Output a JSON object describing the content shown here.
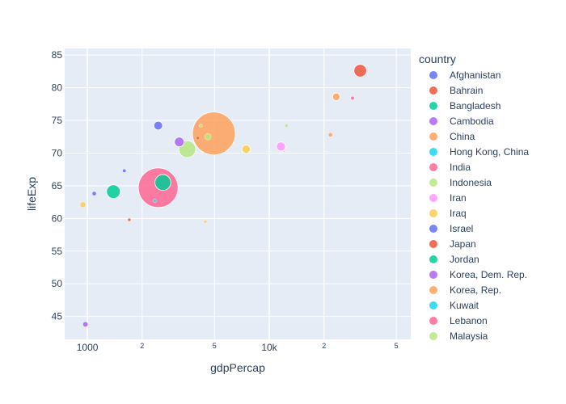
{
  "chart_data": {
    "type": "scatter",
    "xlabel": "gdpPercap",
    "ylabel": "lifeExp",
    "x_scale": "log",
    "xlim": [
      750,
      60000
    ],
    "ylim": [
      41.5,
      86
    ],
    "x_ticks": [
      {
        "value": 1000,
        "label": "1000",
        "minor": false
      },
      {
        "value": 2000,
        "label": "2",
        "minor": true
      },
      {
        "value": 5000,
        "label": "5",
        "minor": true
      },
      {
        "value": 10000,
        "label": "10k",
        "minor": false
      },
      {
        "value": 20000,
        "label": "2",
        "minor": true
      },
      {
        "value": 50000,
        "label": "5",
        "minor": true
      }
    ],
    "y_ticks": [
      45,
      50,
      55,
      60,
      65,
      70,
      75,
      80,
      85
    ],
    "grid": true,
    "legend": {
      "title": "country",
      "placement": "right",
      "entries": [
        {
          "name": "Afghanistan",
          "color": "#636efa"
        },
        {
          "name": "Bahrain",
          "color": "#EF553B"
        },
        {
          "name": "Bangladesh",
          "color": "#00cc96"
        },
        {
          "name": "Cambodia",
          "color": "#ab63fa"
        },
        {
          "name": "China",
          "color": "#FFA15A"
        },
        {
          "name": "Hong Kong, China",
          "color": "#19d3f3"
        },
        {
          "name": "India",
          "color": "#FF6692"
        },
        {
          "name": "Indonesia",
          "color": "#B6E880"
        },
        {
          "name": "Iran",
          "color": "#FF97FF"
        },
        {
          "name": "Iraq",
          "color": "#FECB52"
        },
        {
          "name": "Israel",
          "color": "#636efa"
        },
        {
          "name": "Japan",
          "color": "#EF553B"
        },
        {
          "name": "Jordan",
          "color": "#00cc96"
        },
        {
          "name": "Korea, Dem. Rep.",
          "color": "#ab63fa"
        },
        {
          "name": "Korea, Rep.",
          "color": "#FFA15A"
        },
        {
          "name": "Kuwait",
          "color": "#19d3f3"
        },
        {
          "name": "Lebanon",
          "color": "#FF6692"
        },
        {
          "name": "Malaysia",
          "color": "#B6E880"
        }
      ]
    },
    "points": [
      {
        "x": 975,
        "y": 43.8,
        "size": 3.2,
        "color": "#ab63fa"
      },
      {
        "x": 945,
        "y": 62.1,
        "size": 3.5,
        "color": "#FECB52"
      },
      {
        "x": 1090,
        "y": 63.8,
        "size": 2.6,
        "color": "#636efa"
      },
      {
        "x": 1390,
        "y": 64.1,
        "size": 8.5,
        "color": "#00cc96"
      },
      {
        "x": 1595,
        "y": 67.3,
        "size": 2.2,
        "color": "#636efa"
      },
      {
        "x": 1700,
        "y": 59.8,
        "size": 2.0,
        "color": "#EF553B"
      },
      {
        "x": 2450,
        "y": 74.2,
        "size": 5.4,
        "color": "#636efa"
      },
      {
        "x": 2450,
        "y": 64.7,
        "size": 24.5,
        "color": "#FF6692"
      },
      {
        "x": 2350,
        "y": 62.7,
        "size": 2.0,
        "color": "#19d3f3"
      },
      {
        "x": 2600,
        "y": 65.5,
        "size": 9.8,
        "color": "#00cc96"
      },
      {
        "x": 3200,
        "y": 71.7,
        "size": 6.0,
        "color": "#ab63fa"
      },
      {
        "x": 3540,
        "y": 70.6,
        "size": 10.5,
        "color": "#B6E880"
      },
      {
        "x": 4050,
        "y": 72.3,
        "size": 2.0,
        "color": "#EF553B"
      },
      {
        "x": 4200,
        "y": 74.2,
        "size": 2.0,
        "color": "#B6E880"
      },
      {
        "x": 4450,
        "y": 59.5,
        "size": 2.0,
        "color": "#FECB52"
      },
      {
        "x": 4600,
        "y": 72.5,
        "size": 4.0,
        "color": "#B6E880"
      },
      {
        "x": 4960,
        "y": 73.0,
        "size": 26.5,
        "color": "#FFA15A"
      },
      {
        "x": 7460,
        "y": 70.6,
        "size": 5.2,
        "color": "#FECB52"
      },
      {
        "x": 11600,
        "y": 71.0,
        "size": 5.6,
        "color": "#FF97FF"
      },
      {
        "x": 12450,
        "y": 74.2,
        "size": 2.2,
        "color": "#B6E880"
      },
      {
        "x": 21700,
        "y": 72.8,
        "size": 2.6,
        "color": "#FFA15A"
      },
      {
        "x": 23350,
        "y": 78.6,
        "size": 4.6,
        "color": "#FFA15A"
      },
      {
        "x": 28700,
        "y": 78.4,
        "size": 2.2,
        "color": "#FF6692"
      },
      {
        "x": 31650,
        "y": 82.6,
        "size": 7.8,
        "color": "#EF553B"
      }
    ]
  }
}
